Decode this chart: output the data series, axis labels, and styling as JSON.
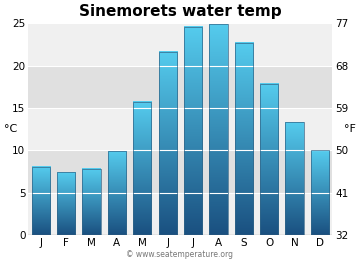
{
  "title": "Sinemorets water temp",
  "months": [
    "J",
    "F",
    "M",
    "A",
    "M",
    "J",
    "J",
    "A",
    "S",
    "O",
    "N",
    "D"
  ],
  "values_c": [
    8.1,
    7.4,
    7.8,
    9.9,
    15.7,
    21.6,
    24.6,
    24.9,
    22.7,
    17.8,
    13.3,
    10.0
  ],
  "ylim_c": [
    0,
    25
  ],
  "yticks_c": [
    0,
    5,
    10,
    15,
    20,
    25
  ],
  "yticks_f": [
    32,
    41,
    50,
    59,
    68,
    77
  ],
  "ylabel_left": "°C",
  "ylabel_right": "°F",
  "bar_color_top": "#55ccee",
  "bar_color_bottom": "#1a5080",
  "bg_color": "#ffffff",
  "plot_bg_color": "#f0f0f0",
  "band_color": "#e0e0e0",
  "title_fontsize": 11,
  "axis_fontsize": 8,
  "tick_fontsize": 7.5,
  "watermark": "© www.seatemperature.org"
}
